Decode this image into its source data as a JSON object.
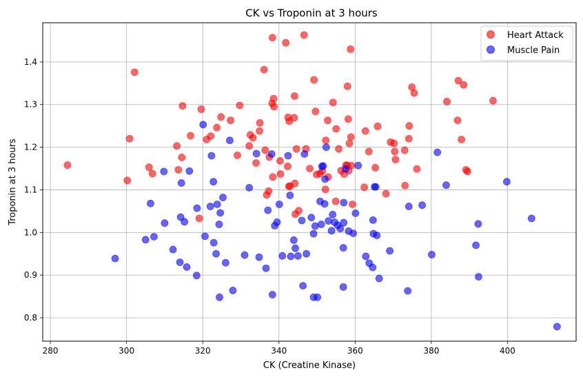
{
  "chart_data": {
    "type": "scatter",
    "title": "CK vs Troponin at 3 hours",
    "xlabel": "CK (Creatine Kinase)",
    "ylabel": "Troponin at 3 hours",
    "xlim": [
      278,
      418
    ],
    "ylim": [
      0.745,
      1.492
    ],
    "xticks": [
      280,
      300,
      320,
      340,
      360,
      380,
      400
    ],
    "yticks": [
      0.8,
      0.9,
      1.0,
      1.1,
      1.2,
      1.3,
      1.4
    ],
    "grid": true,
    "legend_position": "top-right",
    "series": [
      {
        "name": "Heart Attack",
        "color": "#ff0000",
        "points": [
          [
            284.5,
            1.158
          ],
          [
            300.2,
            1.122
          ],
          [
            300.8,
            1.22
          ],
          [
            302.1,
            1.376
          ],
          [
            305.9,
            1.153
          ],
          [
            306.8,
            1.138
          ],
          [
            313.2,
            1.203
          ],
          [
            313.6,
            1.147
          ],
          [
            314.5,
            1.176
          ],
          [
            314.7,
            1.297
          ],
          [
            316.8,
            1.227
          ],
          [
            319.1,
            1.033
          ],
          [
            319.6,
            1.289
          ],
          [
            321.0,
            1.218
          ],
          [
            322.1,
            1.226
          ],
          [
            323.7,
            1.246
          ],
          [
            324.8,
            1.271
          ],
          [
            327.3,
            1.263
          ],
          [
            329.1,
            1.181
          ],
          [
            329.7,
            1.298
          ],
          [
            332.2,
            1.203
          ],
          [
            332.5,
            1.229
          ],
          [
            333.2,
            1.222
          ],
          [
            334.0,
            1.163
          ],
          [
            334.9,
            1.238
          ],
          [
            335.0,
            1.257
          ],
          [
            336.1,
            1.382
          ],
          [
            336.4,
            1.193
          ],
          [
            336.8,
            1.088
          ],
          [
            337.3,
            1.097
          ],
          [
            337.5,
            1.177
          ],
          [
            338.2,
            1.303
          ],
          [
            338.3,
            1.457
          ],
          [
            338.4,
            1.13
          ],
          [
            338.6,
            1.314
          ],
          [
            338.7,
            1.295
          ],
          [
            340.3,
            1.168
          ],
          [
            340.4,
            1.137
          ],
          [
            341.8,
            1.445
          ],
          [
            342.3,
            1.155
          ],
          [
            342.4,
            1.27
          ],
          [
            342.6,
            1.108
          ],
          [
            342.7,
            1.261
          ],
          [
            342.9,
            1.109
          ],
          [
            344.0,
            1.269
          ],
          [
            344.1,
            1.32
          ],
          [
            344.2,
            1.115
          ],
          [
            344.3,
            1.043
          ],
          [
            344.6,
            1.196
          ],
          [
            345.2,
            1.051
          ],
          [
            346.6,
            1.463
          ],
          [
            347.1,
            1.196
          ],
          [
            348.1,
            1.15
          ],
          [
            349.2,
            1.358
          ],
          [
            349.6,
            1.284
          ],
          [
            349.9,
            1.136
          ],
          [
            350.8,
            1.138
          ],
          [
            351.4,
            1.144
          ],
          [
            352.2,
            1.101
          ],
          [
            352.3,
            1.216
          ],
          [
            352.8,
            1.263
          ],
          [
            352.9,
            1.13
          ],
          [
            354.2,
            1.305
          ],
          [
            354.9,
            1.073
          ],
          [
            355.0,
            1.243
          ],
          [
            355.7,
            1.196
          ],
          [
            356.3,
            1.145
          ],
          [
            357.1,
            1.137
          ],
          [
            357.6,
            1.158
          ],
          [
            357.9,
            1.157
          ],
          [
            358.0,
            1.343
          ],
          [
            358.2,
            1.266
          ],
          [
            358.3,
            1.145
          ],
          [
            358.5,
            1.209
          ],
          [
            358.8,
            1.43
          ],
          [
            358.9,
            1.224
          ],
          [
            359.0,
            1.157
          ],
          [
            359.3,
            1.066
          ],
          [
            362.4,
            1.106
          ],
          [
            362.7,
            1.238
          ],
          [
            363.6,
            1.19
          ],
          [
            365.3,
            1.152
          ],
          [
            365.9,
            1.249
          ],
          [
            368.1,
            1.091
          ],
          [
            369.3,
            1.212
          ],
          [
            370.2,
            1.209
          ],
          [
            370.4,
            1.19
          ],
          [
            370.6,
            1.171
          ],
          [
            373.0,
            1.193
          ],
          [
            373.1,
            1.11
          ],
          [
            374.1,
            1.22
          ],
          [
            374.2,
            1.25
          ],
          [
            374.9,
            1.341
          ],
          [
            375.5,
            1.327
          ],
          [
            376.2,
            1.149
          ],
          [
            384.1,
            1.307
          ],
          [
            386.9,
            1.263
          ],
          [
            387.1,
            1.356
          ],
          [
            387.9,
            1.218
          ],
          [
            388.5,
            1.346
          ],
          [
            389.1,
            1.147
          ],
          [
            389.5,
            1.143
          ],
          [
            396.2,
            1.309
          ]
        ]
      },
      {
        "name": "Muscle Pain",
        "color": "#0000ff",
        "points": [
          [
            297.0,
            0.939
          ],
          [
            305.0,
            0.983
          ],
          [
            306.3,
            1.068
          ],
          [
            307.2,
            0.99
          ],
          [
            309.8,
            1.143
          ],
          [
            310.0,
            1.022
          ],
          [
            312.2,
            0.96
          ],
          [
            314.0,
            0.93
          ],
          [
            314.2,
            1.036
          ],
          [
            314.4,
            1.116
          ],
          [
            315.2,
            1.025
          ],
          [
            315.8,
            0.919
          ],
          [
            316.5,
            1.144
          ],
          [
            318.4,
            0.899
          ],
          [
            318.5,
            1.057
          ],
          [
            320.1,
            1.253
          ],
          [
            320.6,
            0.991
          ],
          [
            322.0,
            1.061
          ],
          [
            322.3,
            1.18
          ],
          [
            322.8,
            1.119
          ],
          [
            322.9,
            0.976
          ],
          [
            323.5,
            0.95
          ],
          [
            323.8,
            1.066
          ],
          [
            324.3,
            1.019
          ],
          [
            324.4,
            0.848
          ],
          [
            324.6,
            1.046
          ],
          [
            325.3,
            1.082
          ],
          [
            326.0,
            0.929
          ],
          [
            327.1,
            1.216
          ],
          [
            327.9,
            0.864
          ],
          [
            331.0,
            0.947
          ],
          [
            332.2,
            1.105
          ],
          [
            334.1,
            1.185
          ],
          [
            334.8,
            0.942
          ],
          [
            336.6,
            0.916
          ],
          [
            337.1,
            1.052
          ],
          [
            338.1,
            1.184
          ],
          [
            338.3,
            0.854
          ],
          [
            338.9,
            1.016
          ],
          [
            339.5,
            1.024
          ],
          [
            340.1,
            1.066
          ],
          [
            340.9,
            0.945
          ],
          [
            342.4,
            1.18
          ],
          [
            342.9,
            1.087
          ],
          [
            343.1,
            0.944
          ],
          [
            343.9,
            0.982
          ],
          [
            344.3,
            0.963
          ],
          [
            345.0,
            0.945
          ],
          [
            346.0,
            1.028
          ],
          [
            346.3,
            0.875
          ],
          [
            346.7,
            1.184
          ],
          [
            347.2,
            0.95
          ],
          [
            348.5,
            1.035
          ],
          [
            349.1,
            0.848
          ],
          [
            349.1,
            0.997
          ],
          [
            349.5,
            1.015
          ],
          [
            350.1,
            0.848
          ],
          [
            350.8,
            1.073
          ],
          [
            351.1,
            1.019
          ],
          [
            351.3,
            1.155
          ],
          [
            351.6,
            1.156
          ],
          [
            352.0,
            1.067
          ],
          [
            352.1,
            1.125
          ],
          [
            352.4,
            1.2
          ],
          [
            353.0,
            1.027
          ],
          [
            353.8,
            1.004
          ],
          [
            354.1,
            1.042
          ],
          [
            354.6,
            1.024
          ],
          [
            355.4,
            1.017
          ],
          [
            356.1,
            1.009
          ],
          [
            356.9,
            0.872
          ],
          [
            356.9,
            0.964
          ],
          [
            357.0,
            1.023
          ],
          [
            357.0,
            1.07
          ],
          [
            357.5,
            1.149
          ],
          [
            358.3,
            1.003
          ],
          [
            359.5,
            0.998
          ],
          [
            360.1,
            1.045
          ],
          [
            360.8,
            1.157
          ],
          [
            362.8,
            0.944
          ],
          [
            363.7,
            0.928
          ],
          [
            364.6,
            0.918
          ],
          [
            364.7,
            1.029
          ],
          [
            364.8,
            0.997
          ],
          [
            365.1,
            1.107
          ],
          [
            365.4,
            1.107
          ],
          [
            365.7,
            0.993
          ],
          [
            366.3,
            0.892
          ],
          [
            369.1,
            0.957
          ],
          [
            373.8,
            0.863
          ],
          [
            374.1,
            1.061
          ],
          [
            377.6,
            1.064
          ],
          [
            380.1,
            0.948
          ],
          [
            381.6,
            1.188
          ],
          [
            383.9,
            1.111
          ],
          [
            391.7,
            0.97
          ],
          [
            392.3,
            1.02
          ],
          [
            392.4,
            0.896
          ],
          [
            399.8,
            1.119
          ],
          [
            406.3,
            1.033
          ],
          [
            413.0,
            0.779
          ]
        ]
      }
    ]
  }
}
